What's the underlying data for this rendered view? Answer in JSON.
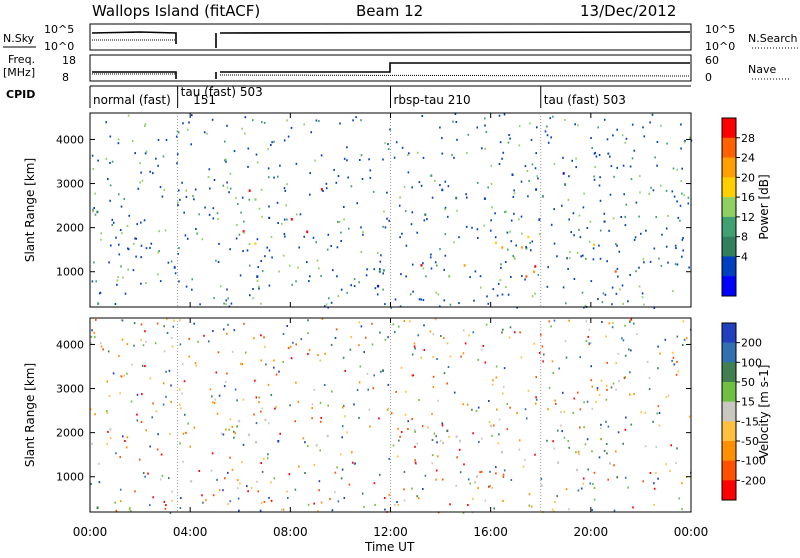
{
  "header": {
    "title": "Wallops Island (fitACF)",
    "beam": "Beam 12",
    "date": "13/Dec/2012"
  },
  "strips": {
    "nsky_label": "N.Sky",
    "nsky_ticks": [
      "10^5",
      "10^0"
    ],
    "nsearch_label": "N.Search",
    "nsearch_ticks": [
      "10^5",
      "10^0"
    ],
    "freq_label": "Freq.",
    "freq_unit": "[MHz]",
    "freq_ticks": [
      "18",
      "8"
    ],
    "nave_label": "Nave",
    "nave_ticks": [
      "60",
      "0"
    ],
    "cpid_label": "CPID",
    "cpid_segments": [
      {
        "label": "normal (fast)",
        "start": 0
      },
      {
        "label": "tau (fast) 503",
        "start": 3.5
      },
      {
        "label": "151",
        "start": 4.0
      },
      {
        "label": "rbsp-tau 210",
        "start": 12.0
      },
      {
        "label": "tau (fast) 503",
        "start": 18.0
      }
    ],
    "nsky_levels": [
      {
        "x0": 0,
        "x1": 3.5,
        "v": 0.75
      },
      {
        "x0": 5.0,
        "x1": 24,
        "v": 0.8
      }
    ],
    "freq_levels": [
      {
        "x0": 0,
        "x1": 12,
        "v": 10.5
      },
      {
        "x0": 12,
        "x1": 24,
        "v": 13.5
      }
    ]
  },
  "chart_data": [
    {
      "type": "heatmap",
      "title": "",
      "xlabel": "",
      "ylabel": "Slant Range [km]",
      "xlim": [
        0,
        24
      ],
      "ylim": [
        200,
        4600
      ],
      "yticks": [
        1000,
        2000,
        3000,
        4000
      ],
      "colorbar": {
        "label": "Power [dB]",
        "ticks": [
          "28",
          "24",
          "20",
          "16",
          "12",
          "8",
          "4"
        ],
        "colors": [
          "#ff0000",
          "#ff6000",
          "#ffa000",
          "#ffd000",
          "#90d060",
          "#40a070",
          "#308060",
          "#0040c0",
          "#0000ff"
        ]
      },
      "features": [
        {
          "x0": 0.1,
          "x1": 1.7,
          "y0": 1800,
          "y1": 2500,
          "level": "mid-high"
        },
        {
          "x0": 0.2,
          "x1": 2.5,
          "y0": 300,
          "y1": 700,
          "level": "low"
        },
        {
          "x0": 2.5,
          "x1": 3.6,
          "y0": 600,
          "y1": 1500,
          "level": "mid"
        },
        {
          "x0": 3.6,
          "x1": 4.5,
          "y0": 800,
          "y1": 1300,
          "level": "high"
        },
        {
          "x0": 4.7,
          "x1": 5.8,
          "y0": 600,
          "y1": 900,
          "level": "high"
        },
        {
          "x0": 5.5,
          "x1": 9.5,
          "y0": 1400,
          "y1": 3000,
          "level": "high"
        },
        {
          "x0": 6.0,
          "x1": 12.0,
          "y0": 500,
          "y1": 1100,
          "level": "low"
        },
        {
          "x0": 12.0,
          "x1": 21.5,
          "y0": 800,
          "y1": 1500,
          "level": "high"
        },
        {
          "x0": 12.5,
          "x1": 21.0,
          "y0": 1500,
          "y1": 2300,
          "level": "mid"
        },
        {
          "x0": 13.0,
          "x1": 20.5,
          "y0": 2300,
          "y1": 3600,
          "level": "low"
        }
      ]
    },
    {
      "type": "heatmap",
      "title": "",
      "xlabel": "Time UT",
      "ylabel": "Slant Range [km]",
      "xlim": [
        0,
        24
      ],
      "ylim": [
        200,
        4600
      ],
      "yticks": [
        1000,
        2000,
        3000,
        4000
      ],
      "xticks": [
        "00:00",
        "04:00",
        "08:00",
        "12:00",
        "16:00",
        "20:00",
        "00:00"
      ],
      "colorbar": {
        "label": "Velocity [m s-1]",
        "ticks": [
          "200",
          "100",
          "50",
          "15",
          "-15",
          "-50",
          "-100",
          "-200"
        ],
        "colors": [
          "#2040c0",
          "#3070b0",
          "#408050",
          "#70c040",
          "#c8c8c0",
          "#ffc040",
          "#ff9000",
          "#ff5000",
          "#ff0000"
        ]
      },
      "features": [
        {
          "x0": 0.1,
          "x1": 1.7,
          "y0": 1800,
          "y1": 2500,
          "v": 0
        },
        {
          "x0": 0.2,
          "x1": 2.5,
          "y0": 300,
          "y1": 700,
          "v": 40
        },
        {
          "x0": 2.5,
          "x1": 4.5,
          "y0": 700,
          "y1": 1300,
          "v": 60
        },
        {
          "x0": 4.7,
          "x1": 5.8,
          "y0": 600,
          "y1": 900,
          "v": 0
        },
        {
          "x0": 5.5,
          "x1": 9.5,
          "y0": 1400,
          "y1": 3000,
          "v": 0
        },
        {
          "x0": 12.0,
          "x1": 21.5,
          "y0": 800,
          "y1": 1500,
          "v": 0
        },
        {
          "x0": 12.5,
          "x1": 21.0,
          "y0": 1500,
          "y1": 2300,
          "v": 0
        },
        {
          "x0": 11.3,
          "x1": 12.0,
          "y0": 2800,
          "y1": 4100,
          "v": 40
        }
      ]
    }
  ]
}
